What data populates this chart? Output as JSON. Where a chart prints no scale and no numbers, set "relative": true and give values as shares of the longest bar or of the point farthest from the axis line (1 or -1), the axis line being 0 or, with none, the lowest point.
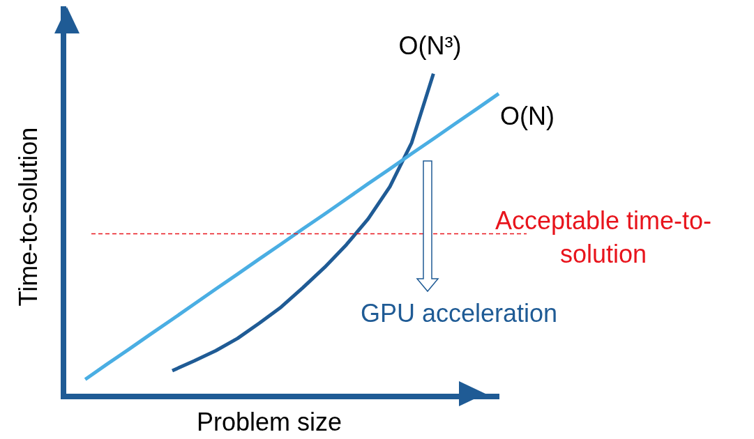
{
  "chart_data": {
    "type": "line",
    "relative": true,
    "xlabel": "Problem size",
    "ylabel": "Time-to-solution",
    "grid": false,
    "legend": false,
    "marker": "none",
    "line_style": "solid",
    "categories": [
      null,
      null,
      null,
      null,
      null,
      null,
      null,
      null,
      null,
      null,
      null,
      null,
      null,
      null,
      null,
      null,
      null,
      null,
      null,
      null,
      null
    ],
    "series": [
      {
        "name": "O(N)",
        "color": "#4aaee3",
        "values": [
          null,
          0.053,
          0.1,
          0.146,
          0.193,
          0.239,
          0.286,
          0.333,
          0.379,
          0.426,
          0.472,
          0.519,
          0.565,
          0.612,
          0.659,
          0.705,
          0.752,
          0.798,
          0.845,
          0.891,
          0.938
        ]
      },
      {
        "name": "O(N³)",
        "color": "#1f5b95",
        "values": [
          null,
          null,
          null,
          null,
          null,
          0.08,
          0.11,
          0.142,
          0.18,
          0.227,
          0.277,
          0.337,
          0.4,
          0.47,
          0.55,
          0.65,
          0.786,
          1,
          null,
          null,
          null
        ]
      }
    ],
    "ref_lines": [
      {
        "axis": "y",
        "value": 0.504,
        "label": "Acceptable time-to-solution",
        "color": "#e8141c",
        "line_style": "dashed"
      }
    ],
    "annotations": [
      "GPU acceleration"
    ]
  }
}
